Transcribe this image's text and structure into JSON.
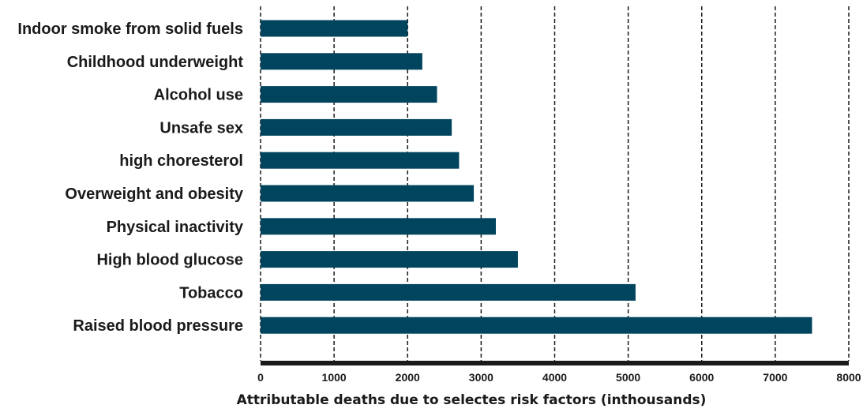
{
  "chart_data": {
    "type": "bar",
    "orientation": "horizontal",
    "categories": [
      "Indoor smoke from solid fuels",
      "Childhood underweight",
      "Alcohol use",
      "Unsafe sex",
      "high choresterol",
      "Overweight and obesity",
      "Physical inactivity",
      "High blood glucose",
      "Tobacco",
      "Raised blood pressure"
    ],
    "values": [
      2000,
      2200,
      2400,
      2600,
      2700,
      2900,
      3200,
      3500,
      5100,
      7500
    ],
    "xlabel": "Attributable deaths due to selectes risk factors (inthousands)",
    "ylabel": "",
    "title": "",
    "xlim": [
      0,
      8000
    ],
    "xticks": [
      "0",
      "1000",
      "2000",
      "3000",
      "4000",
      "5000",
      "6000",
      "7000",
      "8000"
    ],
    "grid": "vertical-dashed",
    "bar_color": "#01445e"
  }
}
